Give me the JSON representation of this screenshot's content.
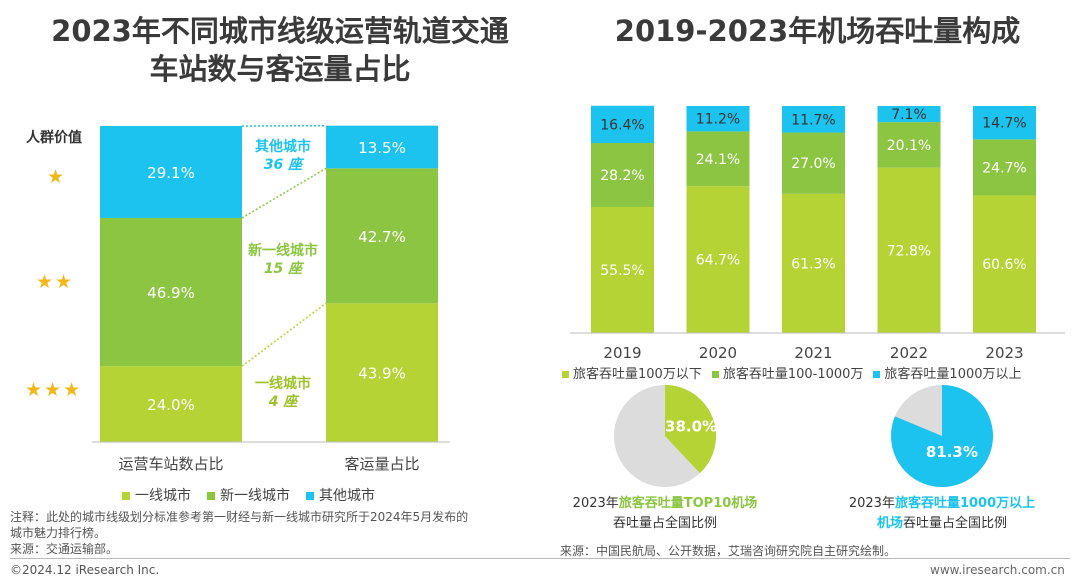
{
  "left": {
    "title_line1": "2023年不同城市线级运营轨道交通",
    "title_line2": "车站数与客运量占比",
    "value_label": "人群价值",
    "chart_data": {
      "type": "bar",
      "stacked": true,
      "categories": [
        "运营车站数占比",
        "客运量占比"
      ],
      "series": [
        {
          "name": "一线城市",
          "color": "#b5d334",
          "values": [
            24.0,
            43.9
          ],
          "labels": [
            "24.0%",
            "43.9%"
          ]
        },
        {
          "name": "新一线城市",
          "color": "#8cc541",
          "values": [
            46.9,
            42.7
          ],
          "labels": [
            "46.9%",
            "42.7%"
          ]
        },
        {
          "name": "其他城市",
          "color": "#1bc3ee",
          "values": [
            29.1,
            13.5
          ],
          "labels": [
            "29.1%",
            "13.5%"
          ]
        }
      ],
      "ylim": [
        0,
        100
      ],
      "legend_position": "bottom"
    },
    "annotations": {
      "other": {
        "name": "其他城市",
        "count": "36 座"
      },
      "new_tier1": {
        "name": "新一线城市",
        "count": "15 座"
      },
      "tier1": {
        "name": "一线城市",
        "count": "4 座"
      }
    },
    "stars": [
      "★",
      "★★",
      "★★★"
    ]
  },
  "right": {
    "title": "2019-2023年机场吞吐量构成",
    "chart_data": {
      "type": "bar",
      "stacked": true,
      "categories": [
        "2019",
        "2020",
        "2021",
        "2022",
        "2023"
      ],
      "series": [
        {
          "name": "旅客吞吐量100万以下",
          "color": "#b5d334",
          "values": [
            55.5,
            64.7,
            61.3,
            72.8,
            60.6
          ],
          "labels": [
            "55.5%",
            "64.7%",
            "61.3%",
            "72.8%",
            "60.6%"
          ]
        },
        {
          "name": "旅客吞吐量100-1000万",
          "color": "#8cc541",
          "values": [
            28.2,
            24.1,
            27.0,
            20.1,
            24.7
          ],
          "labels": [
            "28.2%",
            "24.1%",
            "27.0%",
            "20.1%",
            "24.7%"
          ]
        },
        {
          "name": "旅客吞吐量1000万以上",
          "color": "#1bc3ee",
          "values": [
            16.4,
            11.2,
            11.7,
            7.1,
            14.7
          ],
          "labels": [
            "16.4%",
            "11.2%",
            "11.7%",
            "7.1%",
            "14.7%"
          ]
        }
      ],
      "ylim": [
        0,
        100
      ],
      "legend_position": "bottom"
    },
    "pies": [
      {
        "type": "pie",
        "value": 38.0,
        "label": "38.0%",
        "color": "#b5d334",
        "rest_color": "#dcdcdc",
        "caption_prefix": "2023年",
        "caption_highlight": "旅客吞吐量TOP10机场",
        "caption_line2": "吞吐量占全国比例"
      },
      {
        "type": "pie",
        "value": 81.3,
        "label": "81.3%",
        "color": "#1bc3ee",
        "rest_color": "#dcdcdc",
        "caption_prefix": "2023年",
        "caption_highlight": "旅客吞吐量1000万以上",
        "caption_line2_highlight": "机场",
        "caption_line2_rest": "吞吐量占全国比例"
      }
    ]
  },
  "notes": {
    "note1": "注释：此处的城市线级划分标准参考第一财经与新一线城市研究所于2024年5月发布的",
    "note2": "城市魅力排行榜。",
    "source_left": "来源：交通运输部。",
    "source_right": "来源：中国民航局、公开数据，艾瑞咨询研究院自主研究绘制。",
    "copyright": "©2024.12 iResearch Inc.",
    "website": "www.iresearch.com.cn"
  }
}
